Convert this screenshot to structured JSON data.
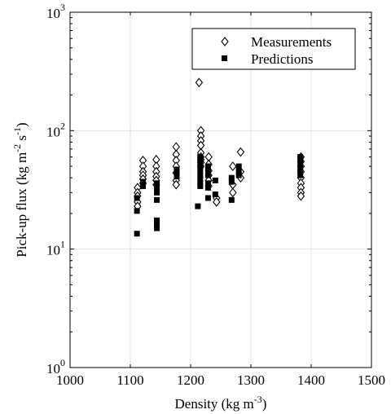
{
  "chart_data": {
    "type": "scatter",
    "xlabel": "Density (kg m",
    "xlabel_sup": "-3",
    "xlabel_end": ")",
    "ylabel": "Pick-up flux (kg m",
    "ylabel_sup1": "-2",
    "ylabel_mid": " s",
    "ylabel_sup2": "-1",
    "ylabel_end": ")",
    "xlim": [
      1000,
      1500
    ],
    "ylim": [
      1,
      1000
    ],
    "yscale": "log",
    "grid": true,
    "legend_position": "top-right",
    "x_ticks": [
      "1000",
      "1100",
      "1200",
      "1300",
      "1400",
      "1500"
    ],
    "x_tick_values": [
      1000,
      1100,
      1200,
      1300,
      1400,
      1500
    ],
    "y_ticks": [
      {
        "base": "10",
        "exp": "0",
        "value": 1
      },
      {
        "base": "10",
        "exp": "1",
        "value": 10
      },
      {
        "base": "10",
        "exp": "2",
        "value": 100
      },
      {
        "base": "10",
        "exp": "3",
        "value": 1000
      }
    ],
    "series": [
      {
        "name": "Measurements",
        "marker": "diamond-open",
        "color": "#000000",
        "points": [
          [
            1112,
            33
          ],
          [
            1112,
            30
          ],
          [
            1112,
            28
          ],
          [
            1112,
            25
          ],
          [
            1112,
            23
          ],
          [
            1121,
            56
          ],
          [
            1121,
            50
          ],
          [
            1121,
            45
          ],
          [
            1121,
            42
          ],
          [
            1121,
            39
          ],
          [
            1121,
            36
          ],
          [
            1143,
            57
          ],
          [
            1143,
            50
          ],
          [
            1143,
            45
          ],
          [
            1143,
            41
          ],
          [
            1143,
            38
          ],
          [
            1143,
            35
          ],
          [
            1176,
            73
          ],
          [
            1176,
            63
          ],
          [
            1176,
            56
          ],
          [
            1176,
            50
          ],
          [
            1176,
            44
          ],
          [
            1176,
            38
          ],
          [
            1176,
            35
          ],
          [
            1214,
            255
          ],
          [
            1217,
            100
          ],
          [
            1217,
            90
          ],
          [
            1217,
            82
          ],
          [
            1217,
            75
          ],
          [
            1217,
            65
          ],
          [
            1217,
            60
          ],
          [
            1217,
            57
          ],
          [
            1217,
            54
          ],
          [
            1217,
            50
          ],
          [
            1230,
            60
          ],
          [
            1230,
            52
          ],
          [
            1230,
            46
          ],
          [
            1230,
            42
          ],
          [
            1230,
            38
          ],
          [
            1230,
            34
          ],
          [
            1243,
            27
          ],
          [
            1243,
            25
          ],
          [
            1270,
            50
          ],
          [
            1270,
            35
          ],
          [
            1270,
            30
          ],
          [
            1283,
            66
          ],
          [
            1283,
            45
          ],
          [
            1283,
            40
          ],
          [
            1383,
            60
          ],
          [
            1383,
            55
          ],
          [
            1383,
            50
          ],
          [
            1383,
            45
          ],
          [
            1383,
            40
          ],
          [
            1383,
            36
          ],
          [
            1383,
            33
          ],
          [
            1383,
            30
          ],
          [
            1383,
            28
          ]
        ]
      },
      {
        "name": "Predictions",
        "marker": "square-filled",
        "color": "#000000",
        "points": [
          [
            1111,
            27
          ],
          [
            1111,
            21
          ],
          [
            1111,
            13.5
          ],
          [
            1121,
            37
          ],
          [
            1121,
            35
          ],
          [
            1121,
            34
          ],
          [
            1144,
            36
          ],
          [
            1144,
            33
          ],
          [
            1144,
            30
          ],
          [
            1144,
            26
          ],
          [
            1144,
            17.5
          ],
          [
            1144,
            16
          ],
          [
            1144,
            15
          ],
          [
            1177,
            47
          ],
          [
            1177,
            44
          ],
          [
            1177,
            41
          ],
          [
            1212,
            23
          ],
          [
            1216,
            60
          ],
          [
            1216,
            57
          ],
          [
            1216,
            53
          ],
          [
            1216,
            50
          ],
          [
            1216,
            46
          ],
          [
            1216,
            42
          ],
          [
            1216,
            39
          ],
          [
            1216,
            36
          ],
          [
            1216,
            34
          ],
          [
            1229,
            50
          ],
          [
            1229,
            46
          ],
          [
            1229,
            42
          ],
          [
            1229,
            36
          ],
          [
            1229,
            33
          ],
          [
            1229,
            27
          ],
          [
            1241,
            38
          ],
          [
            1241,
            29
          ],
          [
            1268,
            40
          ],
          [
            1268,
            37
          ],
          [
            1268,
            26
          ],
          [
            1280,
            50
          ],
          [
            1280,
            45
          ],
          [
            1280,
            42
          ],
          [
            1382,
            60
          ],
          [
            1382,
            57
          ],
          [
            1382,
            52
          ],
          [
            1382,
            48
          ],
          [
            1382,
            45
          ],
          [
            1382,
            42
          ]
        ]
      }
    ]
  }
}
